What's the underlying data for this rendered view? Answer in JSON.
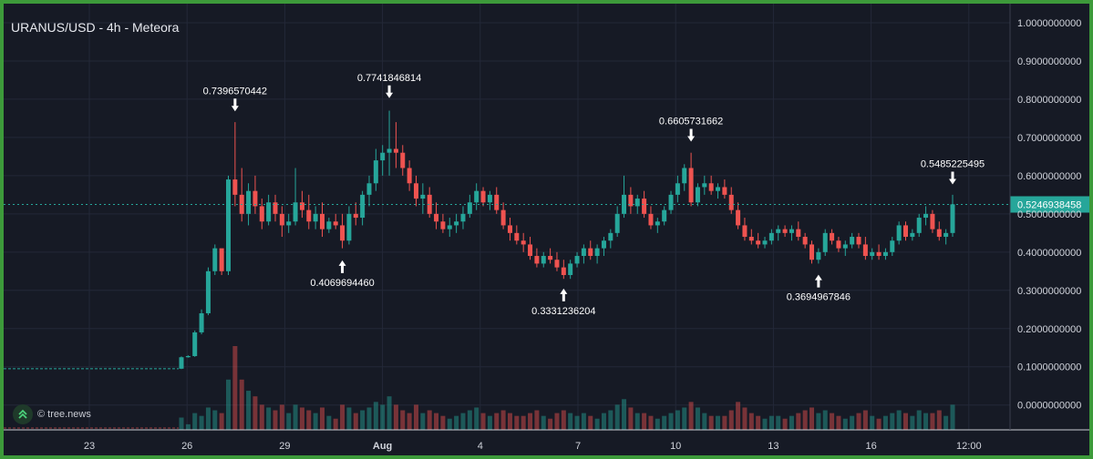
{
  "header": {
    "title": "URANUS/USD - 4h - Meteora"
  },
  "watermark": {
    "text": "© tree.news"
  },
  "colors": {
    "background": "#161a25",
    "frame": "#3d9a3a",
    "up": "#26a69a",
    "down": "#ef5350",
    "grid": "#232838",
    "axis_text": "#d1d4dc",
    "last_price": "#26a69a"
  },
  "chart_data": {
    "type": "candlestick",
    "y_axis": {
      "position": "right",
      "range": [
        -0.065,
        1.05
      ],
      "ticks": [
        "1.0000000000",
        "0.9000000000",
        "0.8000000000",
        "0.7000000000",
        "0.6000000000",
        "0.5000000000",
        "0.4000000000",
        "0.3000000000",
        "0.2000000000",
        "0.1000000000",
        "0.0000000000"
      ]
    },
    "x_axis": {
      "ticks": [
        "23",
        "26",
        "29",
        "Aug",
        "4",
        "7",
        "10",
        "13",
        "16",
        "12:00"
      ]
    },
    "last_price": {
      "label": "0.5246938458",
      "value": 0.5246938458
    },
    "annotations": [
      {
        "label": "0.7396570442",
        "value": 0.7396570442,
        "type": "high"
      },
      {
        "label": "0.7741846814",
        "value": 0.7741846814,
        "type": "high"
      },
      {
        "label": "0.4069694460",
        "value": 0.406969446,
        "type": "low"
      },
      {
        "label": "0.3331236204",
        "value": 0.3331236204,
        "type": "low"
      },
      {
        "label": "0.6605731662",
        "value": 0.6605731662,
        "type": "high"
      },
      {
        "label": "0.3694967846",
        "value": 0.3694967846,
        "type": "low"
      },
      {
        "label": "0.5485225495",
        "value": 0.5485225495,
        "type": "high"
      }
    ],
    "series": [
      {
        "type": "candles",
        "points": [
          [
            0.095,
            0.127,
            0.094,
            0.125,
            22
          ],
          [
            0.125,
            0.13,
            0.124,
            0.128,
            10
          ],
          [
            0.128,
            0.195,
            0.126,
            0.19,
            30
          ],
          [
            0.19,
            0.25,
            0.185,
            0.24,
            25
          ],
          [
            0.24,
            0.36,
            0.235,
            0.35,
            40
          ],
          [
            0.35,
            0.42,
            0.34,
            0.41,
            35
          ],
          [
            0.41,
            0.36,
            0.34,
            0.35,
            30
          ],
          [
            0.35,
            0.6,
            0.34,
            0.59,
            90
          ],
          [
            0.59,
            0.74,
            0.52,
            0.55,
            150
          ],
          [
            0.55,
            0.62,
            0.48,
            0.5,
            90
          ],
          [
            0.5,
            0.58,
            0.47,
            0.56,
            70
          ],
          [
            0.56,
            0.6,
            0.5,
            0.52,
            60
          ],
          [
            0.52,
            0.54,
            0.46,
            0.48,
            45
          ],
          [
            0.48,
            0.55,
            0.47,
            0.53,
            40
          ],
          [
            0.53,
            0.55,
            0.48,
            0.5,
            35
          ],
          [
            0.5,
            0.52,
            0.44,
            0.47,
            45
          ],
          [
            0.47,
            0.5,
            0.45,
            0.48,
            30
          ],
          [
            0.48,
            0.62,
            0.47,
            0.53,
            45
          ],
          [
            0.53,
            0.56,
            0.49,
            0.51,
            40
          ],
          [
            0.51,
            0.55,
            0.46,
            0.48,
            35
          ],
          [
            0.48,
            0.52,
            0.46,
            0.5,
            30
          ],
          [
            0.5,
            0.53,
            0.44,
            0.46,
            40
          ],
          [
            0.46,
            0.49,
            0.45,
            0.48,
            25
          ],
          [
            0.48,
            0.5,
            0.46,
            0.47,
            20
          ],
          [
            0.47,
            0.5,
            0.41,
            0.43,
            45
          ],
          [
            0.43,
            0.52,
            0.42,
            0.5,
            40
          ],
          [
            0.5,
            0.53,
            0.47,
            0.49,
            30
          ],
          [
            0.49,
            0.56,
            0.47,
            0.55,
            35
          ],
          [
            0.55,
            0.6,
            0.52,
            0.58,
            40
          ],
          [
            0.58,
            0.67,
            0.56,
            0.64,
            50
          ],
          [
            0.64,
            0.68,
            0.6,
            0.66,
            45
          ],
          [
            0.66,
            0.77,
            0.6,
            0.67,
            60
          ],
          [
            0.67,
            0.74,
            0.62,
            0.66,
            45
          ],
          [
            0.66,
            0.68,
            0.6,
            0.62,
            35
          ],
          [
            0.62,
            0.64,
            0.56,
            0.58,
            30
          ],
          [
            0.58,
            0.6,
            0.52,
            0.54,
            45
          ],
          [
            0.54,
            0.58,
            0.5,
            0.55,
            30
          ],
          [
            0.55,
            0.57,
            0.49,
            0.5,
            35
          ],
          [
            0.5,
            0.53,
            0.46,
            0.48,
            30
          ],
          [
            0.48,
            0.5,
            0.45,
            0.46,
            25
          ],
          [
            0.46,
            0.49,
            0.44,
            0.47,
            20
          ],
          [
            0.47,
            0.5,
            0.45,
            0.48,
            25
          ],
          [
            0.48,
            0.52,
            0.46,
            0.5,
            30
          ],
          [
            0.5,
            0.55,
            0.49,
            0.53,
            35
          ],
          [
            0.53,
            0.58,
            0.51,
            0.56,
            40
          ],
          [
            0.56,
            0.57,
            0.52,
            0.53,
            30
          ],
          [
            0.53,
            0.56,
            0.51,
            0.55,
            25
          ],
          [
            0.55,
            0.57,
            0.5,
            0.51,
            30
          ],
          [
            0.51,
            0.53,
            0.46,
            0.47,
            35
          ],
          [
            0.47,
            0.49,
            0.43,
            0.45,
            30
          ],
          [
            0.45,
            0.47,
            0.42,
            0.43,
            25
          ],
          [
            0.43,
            0.45,
            0.4,
            0.42,
            25
          ],
          [
            0.42,
            0.44,
            0.38,
            0.39,
            30
          ],
          [
            0.39,
            0.41,
            0.36,
            0.37,
            35
          ],
          [
            0.37,
            0.4,
            0.36,
            0.39,
            25
          ],
          [
            0.39,
            0.41,
            0.37,
            0.38,
            20
          ],
          [
            0.38,
            0.4,
            0.35,
            0.36,
            30
          ],
          [
            0.36,
            0.38,
            0.33,
            0.34,
            35
          ],
          [
            0.34,
            0.38,
            0.33,
            0.37,
            30
          ],
          [
            0.37,
            0.4,
            0.36,
            0.39,
            25
          ],
          [
            0.39,
            0.42,
            0.37,
            0.41,
            30
          ],
          [
            0.41,
            0.43,
            0.38,
            0.39,
            25
          ],
          [
            0.39,
            0.42,
            0.37,
            0.41,
            20
          ],
          [
            0.41,
            0.44,
            0.39,
            0.43,
            30
          ],
          [
            0.43,
            0.46,
            0.41,
            0.45,
            35
          ],
          [
            0.45,
            0.52,
            0.44,
            0.5,
            45
          ],
          [
            0.5,
            0.6,
            0.49,
            0.55,
            55
          ],
          [
            0.55,
            0.57,
            0.5,
            0.52,
            40
          ],
          [
            0.52,
            0.55,
            0.5,
            0.54,
            30
          ],
          [
            0.54,
            0.56,
            0.49,
            0.5,
            30
          ],
          [
            0.5,
            0.52,
            0.46,
            0.47,
            25
          ],
          [
            0.47,
            0.49,
            0.45,
            0.48,
            20
          ],
          [
            0.48,
            0.52,
            0.47,
            0.51,
            25
          ],
          [
            0.51,
            0.56,
            0.5,
            0.55,
            30
          ],
          [
            0.55,
            0.6,
            0.53,
            0.58,
            35
          ],
          [
            0.58,
            0.63,
            0.56,
            0.62,
            40
          ],
          [
            0.62,
            0.66,
            0.52,
            0.53,
            50
          ],
          [
            0.53,
            0.58,
            0.52,
            0.57,
            40
          ],
          [
            0.57,
            0.6,
            0.55,
            0.58,
            30
          ],
          [
            0.58,
            0.6,
            0.55,
            0.56,
            25
          ],
          [
            0.56,
            0.58,
            0.54,
            0.57,
            25
          ],
          [
            0.57,
            0.59,
            0.54,
            0.55,
            25
          ],
          [
            0.55,
            0.57,
            0.5,
            0.51,
            35
          ],
          [
            0.51,
            0.53,
            0.46,
            0.47,
            50
          ],
          [
            0.47,
            0.49,
            0.43,
            0.44,
            40
          ],
          [
            0.44,
            0.46,
            0.42,
            0.43,
            30
          ],
          [
            0.43,
            0.45,
            0.41,
            0.42,
            25
          ],
          [
            0.42,
            0.44,
            0.41,
            0.43,
            20
          ],
          [
            0.43,
            0.46,
            0.42,
            0.45,
            25
          ],
          [
            0.45,
            0.47,
            0.43,
            0.46,
            25
          ],
          [
            0.46,
            0.47,
            0.44,
            0.45,
            20
          ],
          [
            0.45,
            0.47,
            0.43,
            0.46,
            25
          ],
          [
            0.46,
            0.48,
            0.43,
            0.44,
            30
          ],
          [
            0.44,
            0.45,
            0.41,
            0.42,
            35
          ],
          [
            0.42,
            0.43,
            0.37,
            0.38,
            40
          ],
          [
            0.38,
            0.41,
            0.37,
            0.4,
            30
          ],
          [
            0.4,
            0.46,
            0.39,
            0.45,
            35
          ],
          [
            0.45,
            0.46,
            0.42,
            0.43,
            30
          ],
          [
            0.43,
            0.44,
            0.4,
            0.41,
            25
          ],
          [
            0.41,
            0.43,
            0.39,
            0.42,
            20
          ],
          [
            0.42,
            0.45,
            0.41,
            0.44,
            25
          ],
          [
            0.44,
            0.45,
            0.41,
            0.42,
            30
          ],
          [
            0.42,
            0.44,
            0.38,
            0.39,
            35
          ],
          [
            0.39,
            0.41,
            0.38,
            0.4,
            25
          ],
          [
            0.4,
            0.42,
            0.38,
            0.39,
            20
          ],
          [
            0.39,
            0.41,
            0.38,
            0.4,
            25
          ],
          [
            0.4,
            0.44,
            0.39,
            0.43,
            30
          ],
          [
            0.43,
            0.48,
            0.42,
            0.47,
            35
          ],
          [
            0.47,
            0.48,
            0.43,
            0.44,
            30
          ],
          [
            0.44,
            0.46,
            0.43,
            0.45,
            25
          ],
          [
            0.45,
            0.5,
            0.44,
            0.49,
            35
          ],
          [
            0.49,
            0.52,
            0.47,
            0.5,
            30
          ],
          [
            0.5,
            0.51,
            0.45,
            0.46,
            30
          ],
          [
            0.46,
            0.48,
            0.43,
            0.44,
            35
          ],
          [
            0.44,
            0.46,
            0.42,
            0.45,
            25
          ],
          [
            0.45,
            0.55,
            0.44,
            0.525,
            45
          ]
        ]
      }
    ]
  }
}
